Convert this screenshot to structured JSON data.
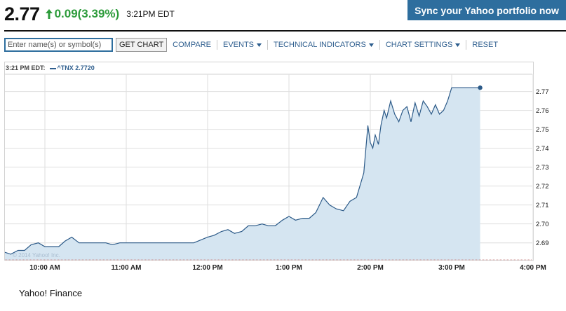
{
  "quote": {
    "price": "2.77",
    "change": "0.09(3.39%)",
    "time": "3:21PM EDT",
    "direction": "up",
    "up_color": "#2c9b3a"
  },
  "header": {
    "sync_button": "Sync your Yahoo portfolio now"
  },
  "toolbar": {
    "search_placeholder": "Enter name(s) or symbol(s)",
    "get_chart": "GET CHART",
    "compare": "COMPARE",
    "events": "EVENTS",
    "technical_indicators": "TECHNICAL INDICATORS",
    "chart_settings": "CHART SETTINGS",
    "reset": "RESET"
  },
  "legend": {
    "time": "3:21 PM EDT:",
    "series": "^TNX 2.7720"
  },
  "watermark": "© 2014 Yahoo! Inc.",
  "footer": "Yahoo! Finance",
  "colors": {
    "line": "#2c5a88",
    "fill": "#d5e5f1",
    "grid": "#dedede",
    "link": "#2e5e8e"
  },
  "chart_data": {
    "type": "area",
    "series_name": "^TNX",
    "x_ticks": [
      "10:00 AM",
      "11:00 AM",
      "12:00 PM",
      "1:00 PM",
      "2:00 PM",
      "3:00 PM",
      "4:00 PM"
    ],
    "y_ticks": [
      "2.69",
      "2.70",
      "2.71",
      "2.72",
      "2.73",
      "2.74",
      "2.75",
      "2.76",
      "2.77"
    ],
    "ylim": [
      2.681,
      2.778
    ],
    "grid": true,
    "x_hours": [
      9.5,
      9.58,
      9.67,
      9.75,
      9.83,
      9.92,
      10.0,
      10.08,
      10.17,
      10.25,
      10.33,
      10.42,
      10.5,
      10.58,
      10.67,
      10.75,
      10.83,
      10.92,
      11.0,
      11.17,
      11.33,
      11.5,
      11.67,
      11.83,
      12.0,
      12.08,
      12.17,
      12.25,
      12.33,
      12.42,
      12.5,
      12.58,
      12.67,
      12.75,
      12.83,
      12.92,
      13.0,
      13.08,
      13.17,
      13.25,
      13.33,
      13.42,
      13.5,
      13.58,
      13.67,
      13.75,
      13.83,
      13.92,
      13.97,
      14.0,
      14.03,
      14.06,
      14.1,
      14.13,
      14.17,
      14.2,
      14.25,
      14.3,
      14.35,
      14.4,
      14.45,
      14.5,
      14.55,
      14.6,
      14.65,
      14.7,
      14.75,
      14.8,
      14.85,
      14.9,
      14.95,
      15.0,
      15.1,
      15.2,
      15.3,
      15.35
    ],
    "y_values": [
      2.685,
      2.684,
      2.686,
      2.686,
      2.689,
      2.69,
      2.688,
      2.688,
      2.688,
      2.691,
      2.693,
      2.69,
      2.69,
      2.69,
      2.69,
      2.69,
      2.689,
      2.69,
      2.69,
      2.69,
      2.69,
      2.69,
      2.69,
      2.69,
      2.693,
      2.694,
      2.696,
      2.697,
      2.695,
      2.696,
      2.699,
      2.699,
      2.7,
      2.699,
      2.699,
      2.702,
      2.704,
      2.702,
      2.703,
      2.703,
      2.706,
      2.714,
      2.71,
      2.708,
      2.707,
      2.712,
      2.714,
      2.727,
      2.752,
      2.743,
      2.74,
      2.747,
      2.742,
      2.752,
      2.76,
      2.756,
      2.765,
      2.758,
      2.754,
      2.76,
      2.762,
      2.754,
      2.764,
      2.757,
      2.765,
      2.762,
      2.758,
      2.763,
      2.758,
      2.76,
      2.765,
      2.772,
      2.772,
      2.772,
      2.772,
      2.772
    ]
  }
}
